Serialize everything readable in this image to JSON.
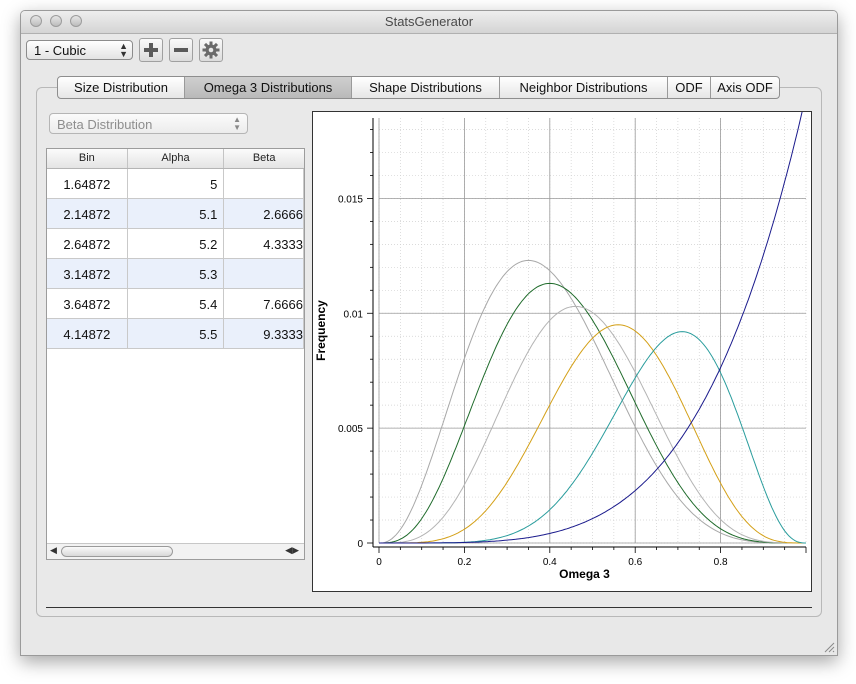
{
  "window": {
    "title": "StatsGenerator"
  },
  "toolbar": {
    "phase_select": "1 - Cubic"
  },
  "tabs": [
    "Size Distribution",
    "Omega 3 Distributions",
    "Shape Distributions",
    "Neighbor Distributions",
    "ODF",
    "Axis ODF"
  ],
  "active_tab": 1,
  "distribution_select": "Beta Distribution",
  "table": {
    "headers": [
      "Bin",
      "Alpha",
      "Beta"
    ],
    "rows": [
      [
        "1.64872",
        "5",
        ""
      ],
      [
        "2.14872",
        "5.1",
        "2.6666"
      ],
      [
        "2.64872",
        "5.2",
        "4.3333"
      ],
      [
        "3.14872",
        "5.3",
        ""
      ],
      [
        "3.64872",
        "5.4",
        "7.6666"
      ],
      [
        "4.14872",
        "5.5",
        "9.3333"
      ]
    ]
  },
  "chart_data": {
    "type": "line",
    "xlabel": "Omega 3",
    "ylabel": "Frequency",
    "xlim": [
      0,
      1
    ],
    "ylim": [
      0,
      0.0185
    ],
    "xticks": [
      "0",
      "0.2",
      "0.4",
      "0.6",
      "0.8"
    ],
    "yticks": [
      "0",
      "0.005",
      "0.01",
      "0.015"
    ],
    "grid": true,
    "series": [
      {
        "color": "#a8a8a8",
        "peak_x": 0.35,
        "peak_y": 0.0123
      },
      {
        "color": "#1f6b2b",
        "peak_x": 0.4,
        "peak_y": 0.0113
      },
      {
        "color": "#b4b4b4",
        "peak_x": 0.46,
        "peak_y": 0.0103
      },
      {
        "color": "#d4a017",
        "peak_x": 0.56,
        "peak_y": 0.0095
      },
      {
        "color": "#2a9d9d",
        "peak_x": 0.71,
        "peak_y": 0.0092
      },
      {
        "color": "#1a1a8c",
        "end_x": 1.0,
        "end_y": 0.0195
      }
    ]
  }
}
